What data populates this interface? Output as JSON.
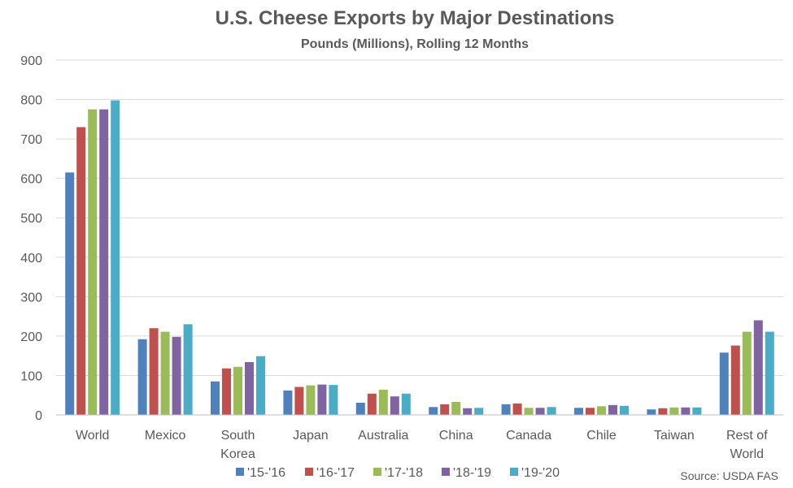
{
  "chart_data": {
    "type": "bar",
    "title": "U.S. Cheese Exports by Major Destinations",
    "subtitle": "Pounds (Millions), Rolling 12 Months",
    "xlabel": "",
    "ylabel": "",
    "ylim": [
      0,
      900
    ],
    "yticks": [
      0,
      100,
      200,
      300,
      400,
      500,
      600,
      700,
      800,
      900
    ],
    "grid": true,
    "legend_position": "bottom",
    "categories": [
      [
        "World"
      ],
      [
        "Mexico"
      ],
      [
        "South",
        "Korea"
      ],
      [
        "Japan"
      ],
      [
        "Australia"
      ],
      [
        "China"
      ],
      [
        "Canada"
      ],
      [
        "Chile"
      ],
      [
        "Taiwan"
      ],
      [
        "Rest of",
        "World"
      ]
    ],
    "series": [
      {
        "name": "'15-'16",
        "color": "#4f81bd",
        "values": [
          615,
          192,
          85,
          62,
          31,
          20,
          27,
          18,
          14,
          158
        ]
      },
      {
        "name": "'16-'17",
        "color": "#c0504d",
        "values": [
          730,
          220,
          118,
          71,
          54,
          27,
          29,
          18,
          17,
          176
        ]
      },
      {
        "name": "'17-'18",
        "color": "#9bbb59",
        "values": [
          775,
          211,
          122,
          75,
          64,
          33,
          18,
          22,
          19,
          211
        ]
      },
      {
        "name": "'18-'19",
        "color": "#8064a2",
        "values": [
          775,
          198,
          134,
          77,
          47,
          17,
          18,
          25,
          19,
          240
        ]
      },
      {
        "name": "'19-'20",
        "color": "#4bacc6",
        "values": [
          798,
          230,
          149,
          76,
          54,
          18,
          20,
          23,
          19,
          211
        ]
      }
    ],
    "source": "Source: USDA FAS"
  }
}
